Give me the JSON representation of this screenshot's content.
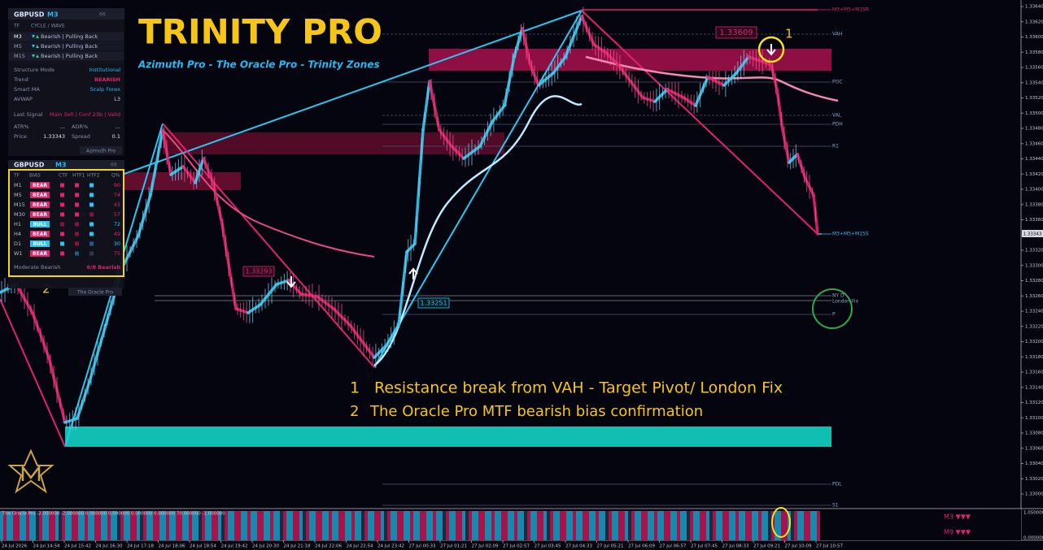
{
  "title": "TRINITY PRO",
  "subtitle": "Azimuth Pro - The Oracle Pro - Trinity Zones",
  "notes": [
    {
      "num": "1",
      "text": "Resistance break from VAH - Target Pivot/ London Fix"
    },
    {
      "num": "2",
      "text": "The Oracle Pro MTF bearish bias confirmation"
    }
  ],
  "markers": [
    "1",
    "2"
  ],
  "price_tags": [
    "1.33609",
    "1.33293",
    "1.33251"
  ],
  "levels": [
    "M3+M5+M15R",
    "VAH",
    "POC",
    "VAL",
    "PDH",
    "R1",
    "M3+M5+M15S",
    "NY D",
    "London Fix",
    "P",
    "PDL",
    "S1"
  ],
  "current_price": "1.33343",
  "price_axis": [
    "1.33640",
    "1.33620",
    "1.33600",
    "1.33580",
    "1.33560",
    "1.33540",
    "1.33520",
    "1.33500",
    "1.33480",
    "1.33460",
    "1.33440",
    "1.33420",
    "1.33400",
    "1.33380",
    "1.33360",
    "1.33340",
    "1.33320",
    "1.33300",
    "1.33280",
    "1.33260",
    "1.33240",
    "1.33220",
    "1.33200",
    "1.33180",
    "1.33160",
    "1.33140",
    "1.33120",
    "1.33100",
    "1.33080",
    "1.33060",
    "1.33040",
    "1.33020",
    "1.33000"
  ],
  "time_axis": [
    "24 Jul 2026",
    "24 Jul 14:54",
    "24 Jul 15:42",
    "24 Jul 16:30",
    "24 Jul 17:18",
    "24 Jul 18:06",
    "24 Jul 18:54",
    "24 Jul 19:42",
    "24 Jul 20:30",
    "24 Jul 21:18",
    "24 Jul 22:06",
    "24 Jul 22:54",
    "24 Jul 23:42",
    "27 Jul 00:33",
    "27 Jul 01:21",
    "27 Jul 02:09",
    "27 Jul 02:57",
    "27 Jul 03:45",
    "27 Jul 04:33",
    "27 Jul 05:21",
    "27 Jul 06:09",
    "27 Jul 06:57",
    "27 Jul 07:45",
    "27 Jul 08:33",
    "27 Jul 09:21",
    "27 Jul 10:09",
    "27 Jul 10:57"
  ],
  "azimuth_panel": {
    "symbol": "GBPUSD",
    "timeframe": "M3",
    "badge": "66",
    "head": [
      "TF",
      "CYCLE / WAVE"
    ],
    "cycle_rows": [
      [
        "M3",
        "Bearish | Pulling Back"
      ],
      [
        "M5",
        "Bearish | Pulling Back"
      ],
      [
        "M15",
        "Bearish | Pulling Back"
      ]
    ],
    "info_rows": [
      [
        "Structure Mode",
        "Institutional"
      ],
      [
        "Trend",
        "BEARISH"
      ],
      [
        "Smart MA",
        "Scalp Forex"
      ],
      [
        "AVWAP",
        "L3"
      ],
      [
        "Last Signal",
        "Main Sell | Conf 23b | Valid"
      ]
    ],
    "stats": [
      [
        "ATR%",
        "...",
        "ADR%",
        "..."
      ],
      [
        "Price",
        "1.33343",
        "Spread",
        "0.1"
      ]
    ],
    "footer": "Azimuth Pro"
  },
  "oracle_panel": {
    "symbol": "GBPUSD",
    "timeframe": "M3",
    "badge": "66",
    "head": [
      "TF",
      "BIAS",
      "CTF",
      "HTF1",
      "HTF2",
      "Q%"
    ],
    "rows": [
      [
        "M1",
        "BEAR",
        90
      ],
      [
        "M5",
        "BEAR",
        74
      ],
      [
        "M15",
        "BEAR",
        43
      ],
      [
        "M30",
        "BEAR",
        57
      ],
      [
        "H1",
        "BULL",
        72
      ],
      [
        "H4",
        "BEAR",
        49
      ],
      [
        "D1",
        "BULL",
        30
      ],
      [
        "W1",
        "BEAR",
        75
      ]
    ],
    "summary": [
      "Moderate Bearish",
      "6/8 Bearish"
    ],
    "footer": "The Oracle Pro"
  },
  "indicator": {
    "caption": "The Oracle Pro -2.000000 -2.000000 0.000000 0.000000 0.000000 0.000000 70.000000 -1.000000",
    "signals": [
      "M3 ▼▼▼",
      "M9 ▼▼▼"
    ],
    "scale": [
      "1.050000",
      "0.000000"
    ]
  }
}
